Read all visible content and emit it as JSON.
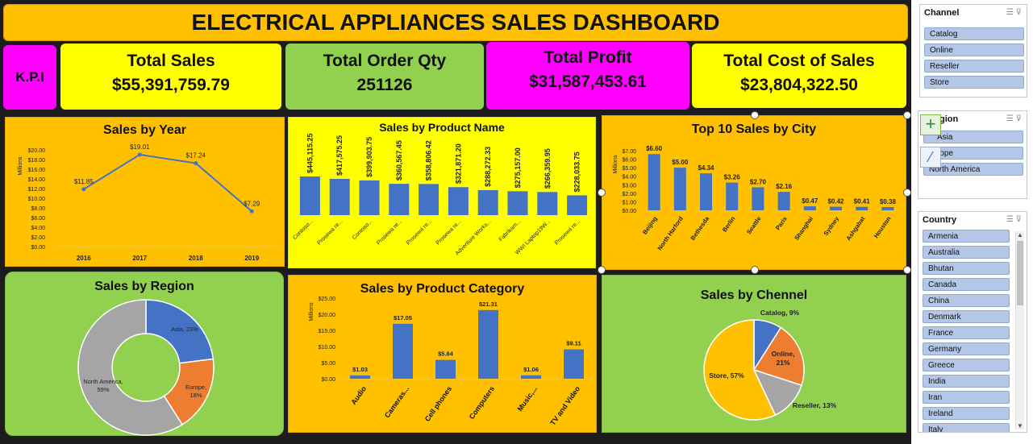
{
  "title": "ELECTRICAL APPLIANCES SALES DASHBOARD",
  "kpi_label": "K.P.I",
  "kpis": {
    "sales": {
      "title": "Total Sales",
      "value": "$55,391,759.79"
    },
    "qty": {
      "title": "Total Order Qty",
      "value": "251126"
    },
    "profit": {
      "title": "Total Profit",
      "value": "$31,587,453.61"
    },
    "cost": {
      "title": "Total Cost of Sales",
      "value": "$23,804,322.50"
    }
  },
  "colors": {
    "orange": "#ffc000",
    "yellow": "#ffff00",
    "green": "#92d050",
    "magenta": "#ff00ff",
    "bar": "#4472c4",
    "line": "#4472c4"
  },
  "chart_data": [
    {
      "id": "sales-by-year",
      "type": "line",
      "title": "Sales by Year",
      "ylabel": "Millions",
      "categories": [
        "2016",
        "2017",
        "2018",
        "2019"
      ],
      "values": [
        11.85,
        19.01,
        17.24,
        7.29
      ],
      "labels": [
        "$11.85",
        "$19.01",
        "$17.24",
        "$7.29"
      ],
      "yticks": [
        "$0.00",
        "$2.00",
        "$4.00",
        "$6.00",
        "$8.00",
        "$10.00",
        "$12.00",
        "$14.00",
        "$16.00",
        "$18.00",
        "$20.00"
      ],
      "ylim": [
        0,
        20
      ]
    },
    {
      "id": "sales-by-product",
      "type": "bar",
      "title": "Sales by Product Name",
      "categories": [
        "Contoso...",
        "Prosewa re...",
        "Contoso...",
        "Prosewa re...",
        "Prosewa re...",
        "Prosewa re...",
        "Adventure Works...",
        "Fabrikam...",
        "WWI Laptop19W...",
        "Prosewa re..."
      ],
      "values": [
        445115.25,
        417575.25,
        399903.75,
        360567.45,
        358806.42,
        321871.2,
        288272.33,
        275157.0,
        266359.95,
        228033.75
      ],
      "labels": [
        "$445,115.25",
        "$417,575.25",
        "$399,903.75",
        "$360,567.45",
        "$358,806.42",
        "$321,871.20",
        "$288,272.33",
        "$275,157.00",
        "$266,359.95",
        "$228,033.75"
      ]
    },
    {
      "id": "top-cities",
      "type": "bar",
      "title": "Top 10 Sales by City",
      "ylabel": "Millions",
      "categories": [
        "Beijing",
        "North Harford",
        "Bethesda",
        "Berlin",
        "Seattle",
        "Paris",
        "Shanghai",
        "Sydney",
        "Ashgabat",
        "Houston"
      ],
      "values": [
        6.6,
        5.0,
        4.34,
        3.26,
        2.7,
        2.16,
        0.47,
        0.42,
        0.41,
        0.38
      ],
      "labels": [
        "$6.60",
        "$5.00",
        "$4.34",
        "$3.26",
        "$2.70",
        "$2.16",
        "$0.47",
        "$0.42",
        "$0.41",
        "$0.38"
      ],
      "yticks": [
        "$0.00",
        "$1.00",
        "$2.00",
        "$3.00",
        "$4.00",
        "$5.00",
        "$6.00",
        "$7.00"
      ],
      "ylim": [
        0,
        7
      ]
    },
    {
      "id": "sales-by-region",
      "type": "pie",
      "title": "Sales by Region",
      "donut": true,
      "categories": [
        "Asia",
        "Europe",
        "North America"
      ],
      "values": [
        23,
        18,
        59
      ],
      "labels": [
        "Asia, 23%",
        "Europe, 18%",
        "North America, 59%"
      ],
      "colors": [
        "#4472c4",
        "#ed7d31",
        "#a5a5a5"
      ]
    },
    {
      "id": "sales-by-category",
      "type": "bar",
      "title": "Sales by Product Category",
      "ylabel": "Millions",
      "categories": [
        "Audio",
        "Cameras...",
        "Cell phones",
        "Computers",
        "Music,...",
        "TV and Video"
      ],
      "values": [
        1.03,
        17.05,
        5.84,
        21.31,
        1.06,
        9.11
      ],
      "labels": [
        "$1.03",
        "$17.05",
        "$5.84",
        "$21.31",
        "$1.06",
        "$9.11"
      ],
      "yticks": [
        "$0.00",
        "$5.00",
        "$10.00",
        "$15.00",
        "$20.00",
        "$25.00"
      ],
      "ylim": [
        0,
        25
      ]
    },
    {
      "id": "sales-by-channel",
      "type": "pie",
      "title": "Sales by Chennel",
      "categories": [
        "Catalog",
        "Online",
        "Reseller",
        "Store"
      ],
      "values": [
        9,
        21,
        13,
        57
      ],
      "labels": [
        "Catalog, 9%",
        "Online, 21%",
        "Reseller, 13%",
        "Store, 57%"
      ],
      "colors": [
        "#4472c4",
        "#ed7d31",
        "#a5a5a5",
        "#ffc000"
      ]
    }
  ],
  "slicers": {
    "channel": {
      "title": "Channel",
      "items": [
        "Catalog",
        "Online",
        "Reseller",
        "Store"
      ]
    },
    "region": {
      "title": "gion",
      "items": [
        "Asia",
        "rope",
        "North America"
      ]
    },
    "country": {
      "title": "Country",
      "items": [
        "Armenia",
        "Australia",
        "Bhutan",
        "Canada",
        "China",
        "Denmark",
        "France",
        "Germany",
        "Greece",
        "India",
        "Iran",
        "Ireland",
        "Italy"
      ]
    }
  }
}
